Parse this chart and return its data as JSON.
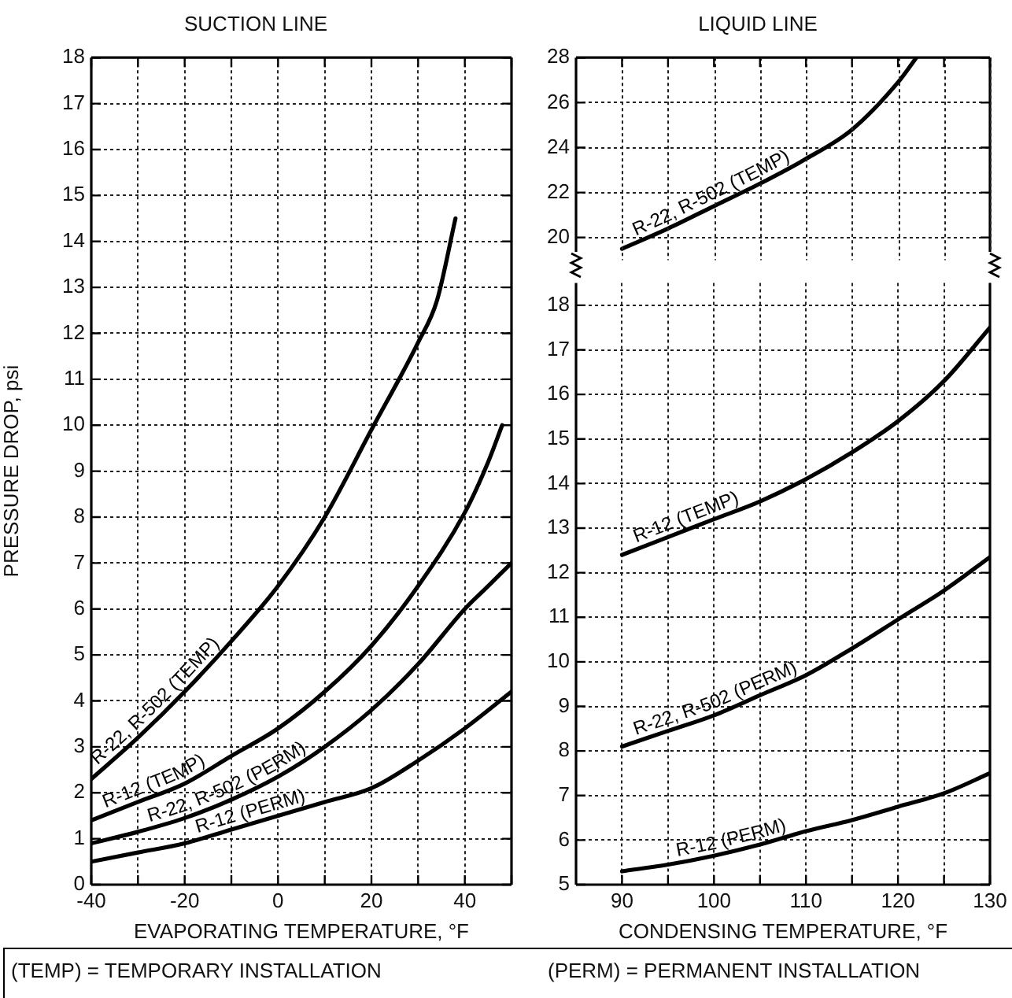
{
  "chart_data": [
    {
      "type": "line",
      "title": "SUCTION LINE",
      "xlabel": "EVAPORATING TEMPERATURE, °F",
      "ylabel": "PRESSURE DROP, psi",
      "xlim": [
        -40,
        50
      ],
      "xticks": [
        -40,
        {
          "value": -30,
          "label": null
        },
        -20,
        {
          "value": -10,
          "label": null
        },
        0,
        {
          "value": 10,
          "label": null
        },
        20,
        {
          "value": 30,
          "label": null
        },
        40,
        {
          "value": 50,
          "label": null
        }
      ],
      "ylim": [
        0,
        18
      ],
      "yticks": [
        0,
        1,
        2,
        3,
        4,
        5,
        6,
        7,
        8,
        9,
        10,
        11,
        12,
        13,
        14,
        15,
        16,
        17,
        18
      ],
      "grid": true,
      "legend": false,
      "marker": "none",
      "line_style": "solid",
      "annotations": [
        "(TEMP) = TEMPORARY INSTALLATION"
      ],
      "series": [
        {
          "name": "R-22, R-502 (TEMP)",
          "color": "#000000",
          "x": [
            -40,
            -30,
            -20,
            -10,
            0,
            10,
            20,
            30,
            34,
            38
          ],
          "values": [
            2.3,
            3.2,
            4.2,
            5.3,
            6.5,
            8.0,
            9.9,
            11.8,
            12.7,
            14.5
          ]
        },
        {
          "name": "R-12 (TEMP)",
          "color": "#000000",
          "x": [
            -40,
            -30,
            -20,
            -10,
            0,
            10,
            20,
            30,
            40,
            45,
            48
          ],
          "values": [
            1.4,
            1.8,
            2.2,
            2.8,
            3.4,
            4.2,
            5.2,
            6.5,
            8.1,
            9.2,
            10
          ]
        },
        {
          "name": "R-22, R-502 (PERM)",
          "color": "#000000",
          "x": [
            -40,
            -30,
            -20,
            -10,
            0,
            10,
            20,
            30,
            40,
            45,
            50
          ],
          "values": [
            0.9,
            1.15,
            1.45,
            1.85,
            2.35,
            3.0,
            3.8,
            4.8,
            6.0,
            6.5,
            7.0
          ]
        },
        {
          "name": "R-12 (PERM)",
          "color": "#000000",
          "x": [
            -40,
            -30,
            -20,
            -10,
            0,
            10,
            20,
            30,
            40,
            50
          ],
          "values": [
            0.5,
            0.7,
            0.9,
            1.2,
            1.5,
            1.8,
            2.1,
            2.7,
            3.4,
            4.2
          ]
        }
      ]
    },
    {
      "type": "line",
      "title": "LIQUID LINE",
      "xlim": [
        85,
        130
      ],
      "xticks": [
        90,
        {
          "value": 95,
          "label": null
        },
        100,
        {
          "value": 105,
          "label": null
        },
        110,
        {
          "value": 115,
          "label": null
        },
        120,
        {
          "value": 125,
          "label": null
        },
        130
      ],
      "ylim": [
        19,
        28
      ],
      "yticks": [
        20,
        22,
        24,
        26,
        28
      ],
      "grid": true,
      "legend": false,
      "tick_labels": "y",
      "marker": "none",
      "line_style": "solid",
      "series": [
        {
          "name": "R-22, R-502 (TEMP)",
          "color": "#000000",
          "x": [
            90,
            95,
            100,
            105,
            110,
            115,
            120,
            122
          ],
          "values": [
            19.5,
            20.4,
            21.4,
            22.4,
            23.5,
            24.8,
            26.9,
            28
          ]
        }
      ]
    },
    {
      "type": "line",
      "xlabel": "CONDENSING TEMPERATURE, °F",
      "xlim": [
        85,
        130
      ],
      "xticks": [
        90,
        {
          "value": 95,
          "label": null
        },
        100,
        {
          "value": 105,
          "label": null
        },
        110,
        {
          "value": 115,
          "label": null
        },
        120,
        {
          "value": 125,
          "label": null
        },
        130
      ],
      "ylim": [
        5,
        18.5
      ],
      "yticks": [
        5,
        6,
        7,
        8,
        9,
        10,
        11,
        12,
        13,
        14,
        15,
        16,
        17,
        18
      ],
      "grid": true,
      "legend": false,
      "marker": "none",
      "line_style": "solid",
      "annotations": [
        "(PERM) = PERMANENT INSTALLATION"
      ],
      "series": [
        {
          "name": "R-12 (TEMP)",
          "color": "#000000",
          "x": [
            90,
            95,
            100,
            105,
            110,
            115,
            120,
            125,
            130
          ],
          "values": [
            12.4,
            12.8,
            13.2,
            13.6,
            14.1,
            14.7,
            15.4,
            16.3,
            17.5
          ]
        },
        {
          "name": "R-22, R-502 (PERM)",
          "color": "#000000",
          "x": [
            90,
            95,
            100,
            105,
            110,
            115,
            120,
            125,
            130
          ],
          "values": [
            8.1,
            8.45,
            8.8,
            9.25,
            9.7,
            10.3,
            10.95,
            11.6,
            12.35
          ]
        },
        {
          "name": "R-12 (PERM)",
          "color": "#000000",
          "x": [
            90,
            95,
            100,
            105,
            110,
            115,
            120,
            125,
            130
          ],
          "values": [
            5.3,
            5.45,
            5.65,
            5.9,
            6.2,
            6.45,
            6.75,
            7.05,
            7.5
          ]
        }
      ]
    }
  ]
}
